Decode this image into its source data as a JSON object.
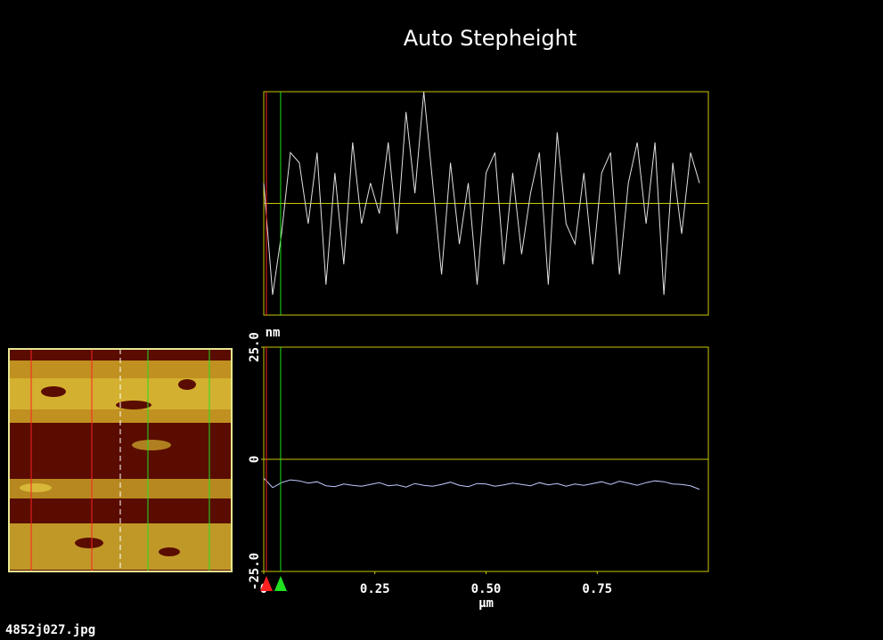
{
  "title": "Auto Stepheight",
  "filename": "4852j027.jpg",
  "chart_data": [
    {
      "type": "line",
      "x": [
        0,
        0.02,
        0.04,
        0.06,
        0.08,
        0.1,
        0.12,
        0.14,
        0.16,
        0.18,
        0.2,
        0.22,
        0.24,
        0.26,
        0.28,
        0.3,
        0.32,
        0.34,
        0.36,
        0.38,
        0.4,
        0.42,
        0.44,
        0.46,
        0.48,
        0.5,
        0.52,
        0.54,
        0.56,
        0.58,
        0.6,
        0.62,
        0.64,
        0.66,
        0.68,
        0.7,
        0.72,
        0.74,
        0.76,
        0.78,
        0.8,
        0.82,
        0.84,
        0.86,
        0.88,
        0.9,
        0.92,
        0.94,
        0.96,
        0.98
      ],
      "xlim": [
        0,
        1.0
      ],
      "ylim": [
        -1.1,
        1.1
      ],
      "frame_color": "#c8c800",
      "series": [
        {
          "color": "#e0e0e0",
          "values": [
            0.2,
            -0.9,
            -0.3,
            0.5,
            0.4,
            -0.2,
            0.5,
            -0.8,
            0.3,
            -0.6,
            0.6,
            -0.2,
            0.2,
            -0.1,
            0.6,
            -0.3,
            0.9,
            0.1,
            1.1,
            0.2,
            -0.7,
            0.4,
            -0.4,
            0.2,
            -0.8,
            0.3,
            0.5,
            -0.6,
            0.3,
            -0.5,
            0.1,
            0.5,
            -0.8,
            0.7,
            -0.2,
            -0.4,
            0.3,
            -0.6,
            0.3,
            0.5,
            -0.7,
            0.2,
            0.6,
            -0.2,
            0.6,
            -0.9,
            0.4,
            -0.3,
            0.5,
            0.2
          ]
        }
      ],
      "cursors": [
        {
          "color": "#ff2020",
          "x": 0.006
        },
        {
          "color": "#20e020",
          "x": 0.038
        }
      ]
    },
    {
      "type": "line",
      "x": [
        0,
        0.02,
        0.04,
        0.06,
        0.08,
        0.1,
        0.12,
        0.14,
        0.16,
        0.18,
        0.2,
        0.22,
        0.24,
        0.26,
        0.28,
        0.3,
        0.32,
        0.34,
        0.36,
        0.38,
        0.4,
        0.42,
        0.44,
        0.46,
        0.48,
        0.5,
        0.52,
        0.54,
        0.56,
        0.58,
        0.6,
        0.62,
        0.64,
        0.66,
        0.68,
        0.7,
        0.72,
        0.74,
        0.76,
        0.78,
        0.8,
        0.82,
        0.84,
        0.86,
        0.88,
        0.9,
        0.92,
        0.94,
        0.96,
        0.98
      ],
      "xlim": [
        0,
        1.0
      ],
      "ylim": [
        -25,
        25
      ],
      "xticks": [
        0,
        0.25,
        {
          "value": 0.5,
          "label": "0.50"
        },
        0.75
      ],
      "yticks": [
        {
          "value": -25,
          "label": "-25.0"
        },
        0,
        {
          "value": 25,
          "label": "25.0"
        }
      ],
      "x_label": "µm",
      "y_label": "nm",
      "frame_color": "#c8c800",
      "series": [
        {
          "color": "#c0c8ff",
          "values": [
            -4.2,
            -6.3,
            -5.2,
            -4.6,
            -4.8,
            -5.3,
            -5.0,
            -5.9,
            -6.1,
            -5.5,
            -5.8,
            -6.0,
            -5.6,
            -5.2,
            -5.9,
            -5.7,
            -6.2,
            -5.4,
            -5.8,
            -6.0,
            -5.6,
            -5.1,
            -5.8,
            -6.1,
            -5.4,
            -5.5,
            -6.0,
            -5.7,
            -5.3,
            -5.6,
            -5.9,
            -5.2,
            -5.7,
            -5.4,
            -6.0,
            -5.5,
            -5.8,
            -5.4,
            -5.0,
            -5.6,
            -4.9,
            -5.3,
            -5.8,
            -5.2,
            -4.8,
            -5.0,
            -5.5,
            -5.6,
            -5.9,
            -6.7
          ]
        }
      ],
      "cursors": [
        {
          "color": "#ff2020",
          "x": 0.006
        },
        {
          "color": "#20e020",
          "x": 0.038
        }
      ]
    }
  ]
}
